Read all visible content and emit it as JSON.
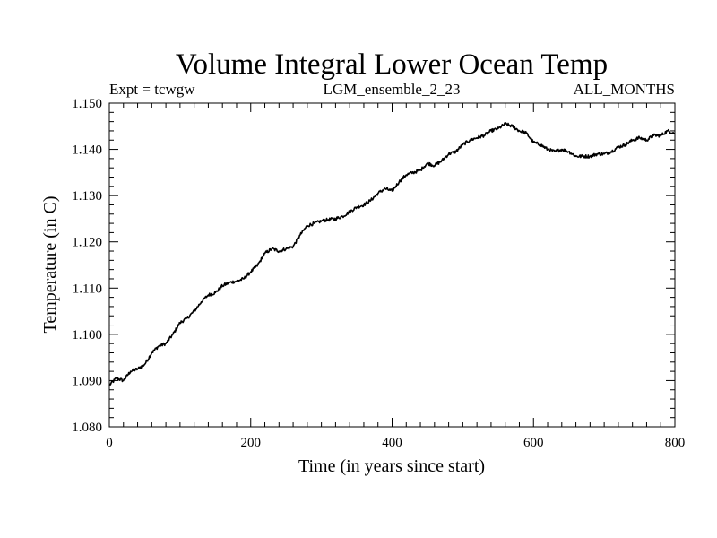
{
  "chart_data": {
    "type": "line",
    "title": "Volume Integral Lower Ocean Temp",
    "subtitle_left": "Expt = tcwgw",
    "subtitle_center": "LGM_ensemble_2_23",
    "subtitle_right": "ALL_MONTHS",
    "xlabel": "Time (in years since start)",
    "ylabel": "Temperature (in C)",
    "xlim": [
      0,
      800
    ],
    "ylim": [
      1.08,
      1.15
    ],
    "x_major_ticks": [
      0,
      200,
      400,
      600,
      800
    ],
    "x_tick_labels": [
      "0",
      "200",
      "400",
      "600",
      "800"
    ],
    "x_minor_step": 20,
    "y_major_ticks": [
      1.08,
      1.09,
      1.1,
      1.11,
      1.12,
      1.13,
      1.14,
      1.15
    ],
    "y_tick_labels": [
      "1.080",
      "1.090",
      "1.100",
      "1.110",
      "1.120",
      "1.130",
      "1.140",
      "1.150"
    ],
    "y_minor_step": 0.002,
    "grid": false,
    "series": [
      {
        "name": "Volume Integral Lower Ocean Temp",
        "color": "#000000",
        "x": [
          0,
          10,
          20,
          30,
          40,
          50,
          60,
          70,
          80,
          90,
          100,
          110,
          120,
          130,
          140,
          150,
          160,
          170,
          180,
          190,
          200,
          210,
          220,
          230,
          240,
          250,
          260,
          270,
          280,
          290,
          300,
          310,
          320,
          330,
          340,
          350,
          360,
          370,
          380,
          390,
          400,
          410,
          420,
          430,
          440,
          450,
          460,
          470,
          480,
          490,
          500,
          510,
          520,
          530,
          540,
          550,
          560,
          570,
          580,
          590,
          600,
          610,
          620,
          630,
          640,
          650,
          660,
          670,
          680,
          690,
          700,
          710,
          720,
          730,
          740,
          750,
          760,
          770,
          780,
          790,
          800
        ],
        "values": [
          1.089,
          1.0905,
          1.09,
          1.092,
          1.0925,
          1.0935,
          1.096,
          1.0975,
          1.098,
          1.1,
          1.1025,
          1.1035,
          1.105,
          1.107,
          1.1085,
          1.109,
          1.1105,
          1.1112,
          1.1115,
          1.112,
          1.1135,
          1.115,
          1.1175,
          1.1185,
          1.118,
          1.1185,
          1.119,
          1.1215,
          1.1235,
          1.124,
          1.1245,
          1.1248,
          1.125,
          1.1255,
          1.1265,
          1.1275,
          1.128,
          1.129,
          1.1305,
          1.1315,
          1.131,
          1.133,
          1.1345,
          1.135,
          1.1355,
          1.137,
          1.1365,
          1.1375,
          1.139,
          1.1395,
          1.141,
          1.142,
          1.1425,
          1.143,
          1.144,
          1.1445,
          1.1455,
          1.145,
          1.144,
          1.1435,
          1.1415,
          1.141,
          1.14,
          1.1395,
          1.14,
          1.1395,
          1.1385,
          1.1385,
          1.1385,
          1.139,
          1.139,
          1.1395,
          1.1405,
          1.141,
          1.142,
          1.1425,
          1.142,
          1.143,
          1.143,
          1.144,
          1.1435
        ]
      }
    ]
  }
}
